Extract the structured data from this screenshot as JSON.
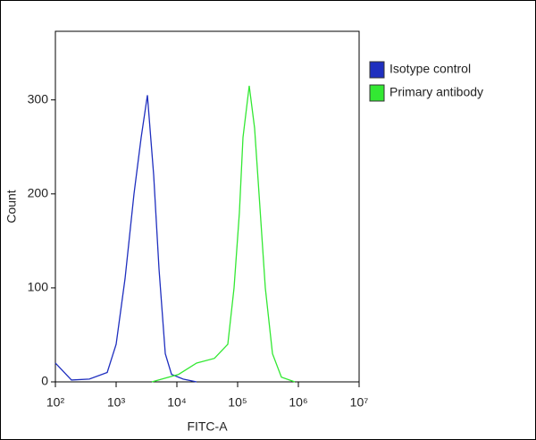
{
  "chart_data": {
    "type": "line",
    "xlabel": "FITC-A",
    "ylabel": "Count",
    "xscale": "log",
    "xlim": [
      100,
      10000000
    ],
    "ylim": [
      0,
      373
    ],
    "xticks": [
      {
        "value": 100,
        "label": "10²"
      },
      {
        "value": 1000,
        "label": "10³"
      },
      {
        "value": 10000,
        "label": "10⁴"
      },
      {
        "value": 100000,
        "label": "10⁵"
      },
      {
        "value": 1000000,
        "label": "10⁶"
      },
      {
        "value": 10000000,
        "label": "10⁷"
      }
    ],
    "yticks": [
      0,
      100,
      200,
      300
    ],
    "legend": "right",
    "series": [
      {
        "name": "Isotype control",
        "color": "#1f2fbf",
        "x": [
          100,
          184,
          362,
          713,
          1000,
          1403,
          1968,
          2582,
          3272,
          4150,
          5082,
          6442,
          8162,
          12680,
          21090
        ],
        "values": [
          20,
          2,
          3,
          10,
          40,
          110,
          200,
          260,
          305,
          220,
          120,
          30,
          8,
          3,
          0
        ]
      },
      {
        "name": "Primary antibody",
        "color": "#33e833",
        "x": [
          3873,
          10690,
          21090,
          41500,
          68900,
          87300,
          106900,
          122500,
          155200,
          190200,
          225200,
          285600,
          374800,
          525800,
          873000
        ],
        "values": [
          0,
          8,
          20,
          25,
          40,
          100,
          180,
          260,
          315,
          270,
          200,
          100,
          30,
          5,
          0
        ]
      }
    ]
  }
}
